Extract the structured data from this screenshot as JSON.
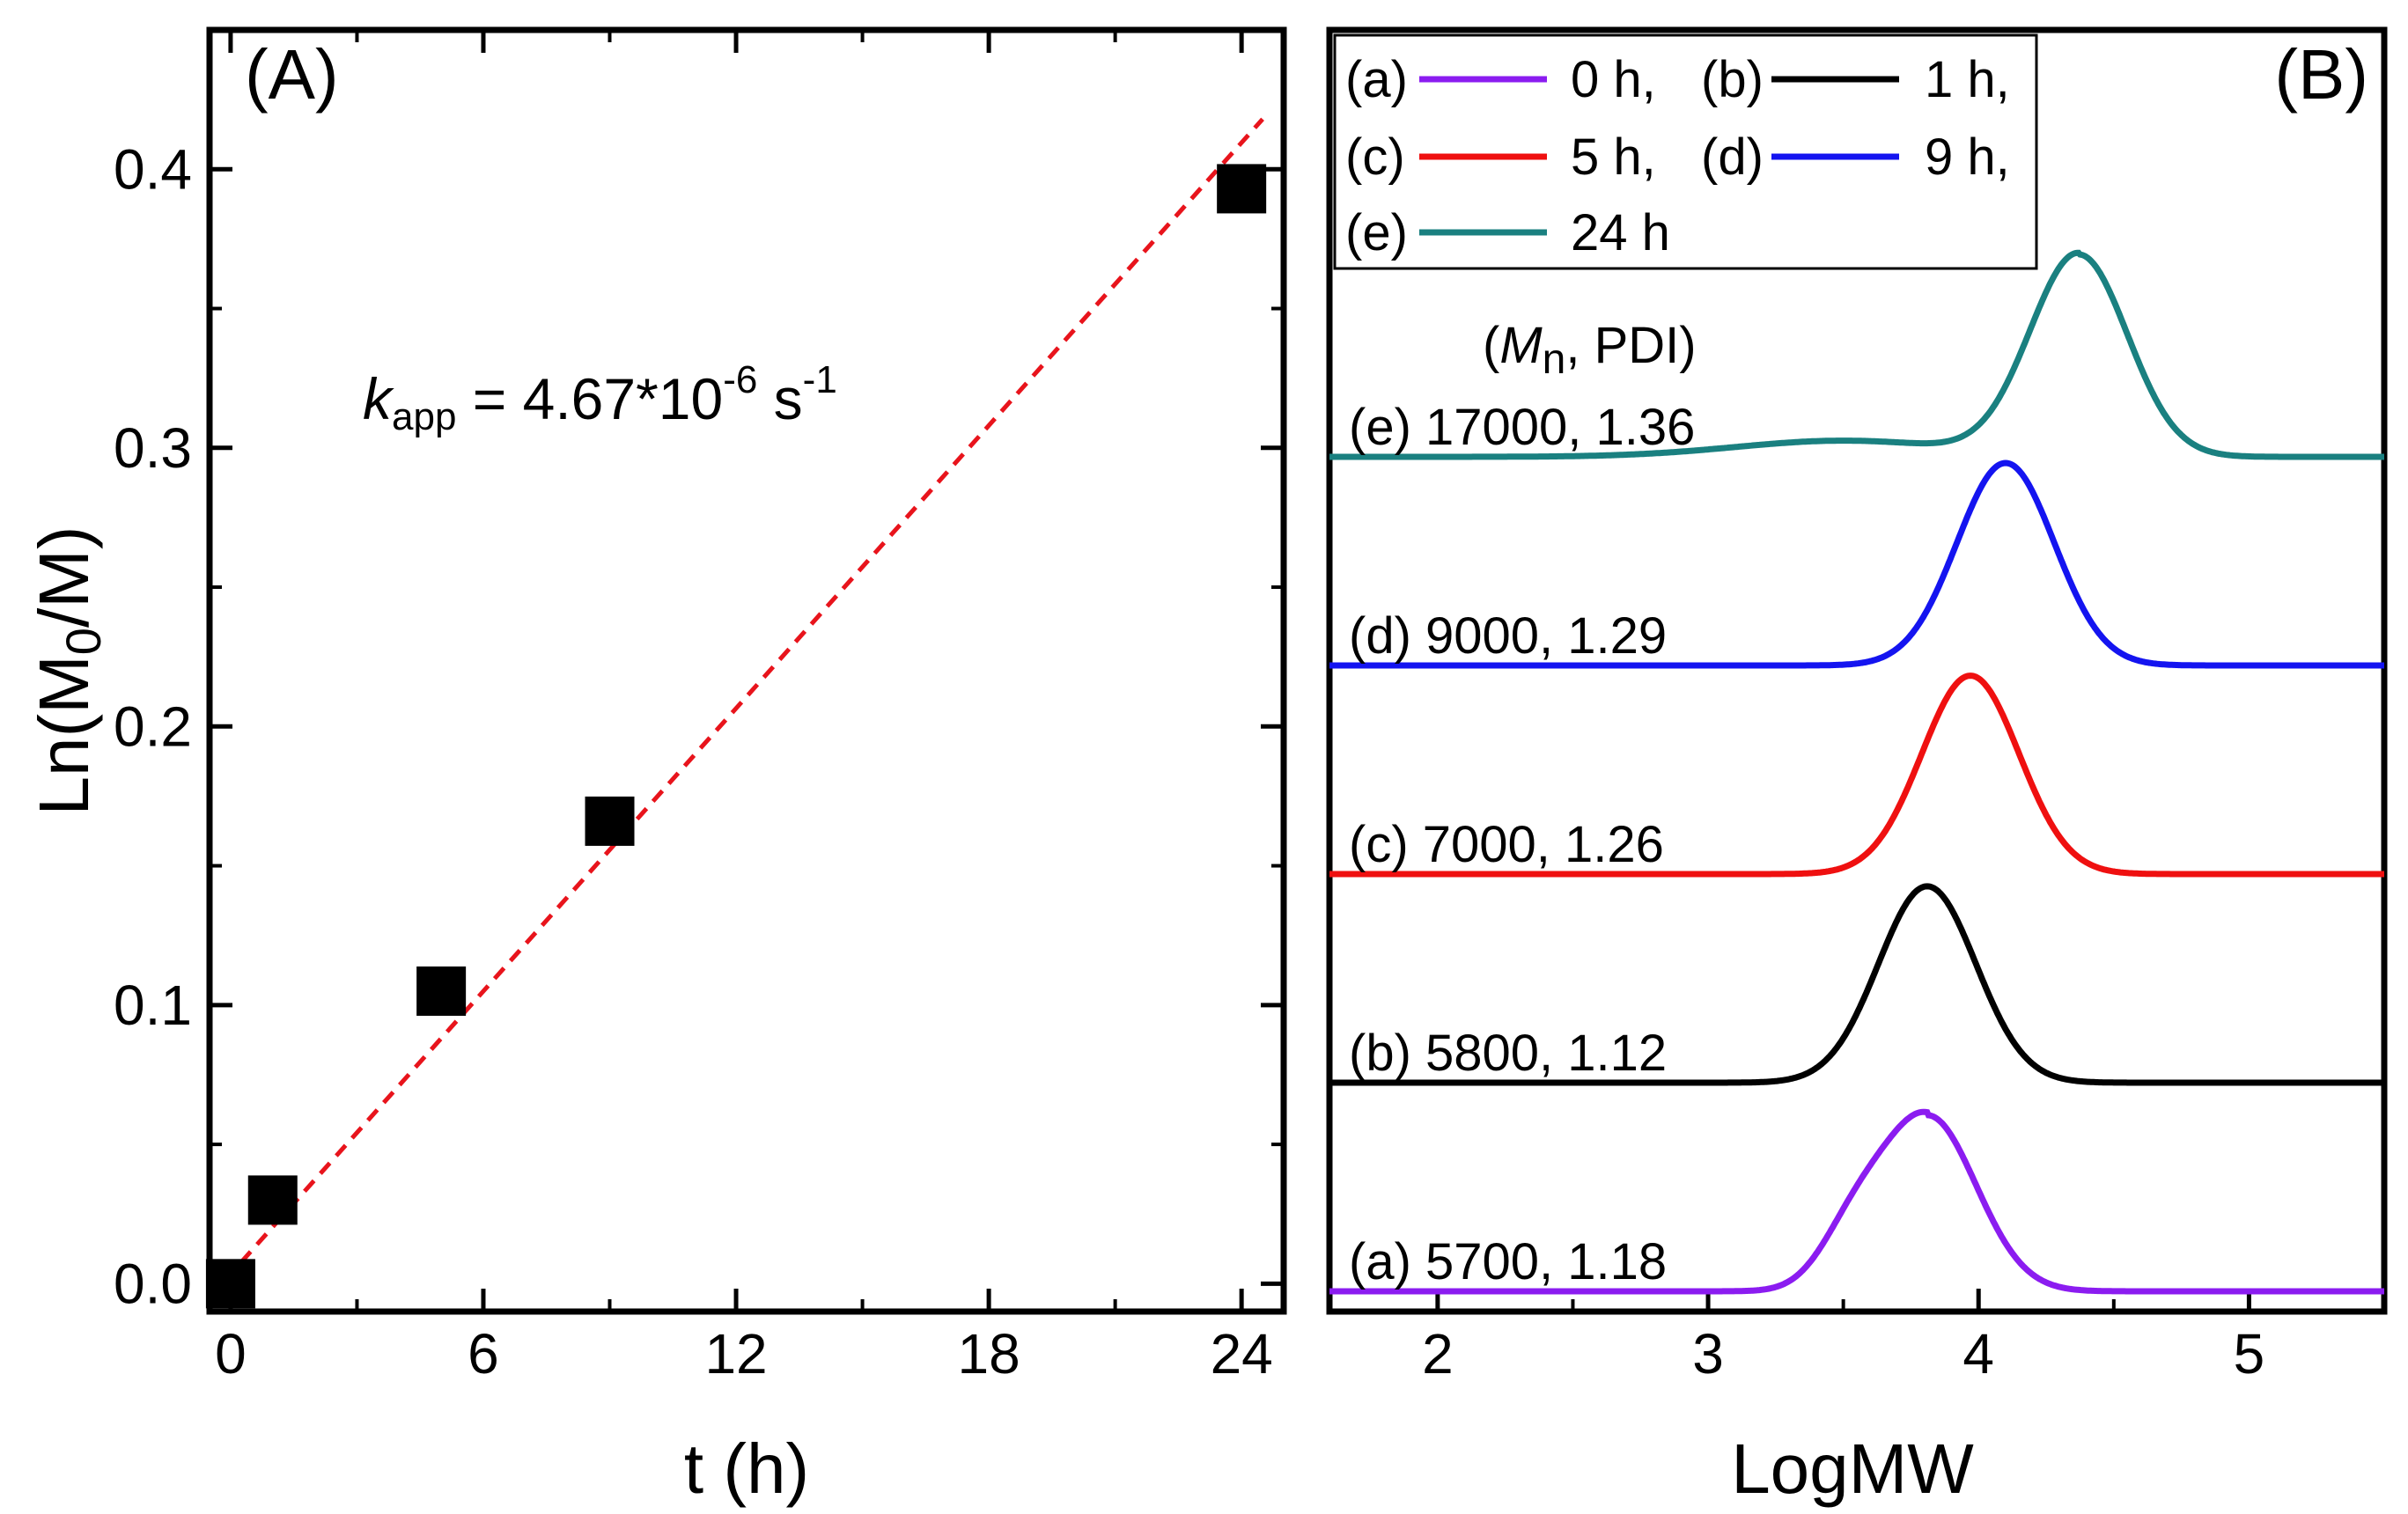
{
  "chart_data": [
    {
      "panel": "(A)",
      "type": "scatter",
      "xlabel": "t (h)",
      "ylabel": "Ln(M0/M)",
      "ylabel_parts": [
        "Ln(M",
        "0",
        "/M)"
      ],
      "xlim": [
        -0.5,
        25
      ],
      "ylim": [
        -0.01,
        0.45
      ],
      "x_ticks": [
        0,
        6,
        12,
        18,
        24
      ],
      "x_tick_labels": [
        "0",
        "6",
        "12",
        "18",
        "24"
      ],
      "y_ticks": [
        0.0,
        0.1,
        0.2,
        0.3,
        0.4
      ],
      "y_tick_labels": [
        "0.0",
        "0.1",
        "0.2",
        "0.3",
        "0.4"
      ],
      "points": {
        "x": [
          0,
          1,
          5,
          9,
          24
        ],
        "y": [
          0.0,
          0.03,
          0.105,
          0.166,
          0.393
        ],
        "color": "#000000"
      },
      "fit_line": {
        "x": [
          -0.5,
          24.5
        ],
        "y": [
          -0.005,
          0.418
        ],
        "color": "#e8141c",
        "style": "dashed"
      },
      "annotation": {
        "k": "k",
        "sub": "app",
        "value": " = 4.67*10",
        "exp": "-6",
        "unit": " s",
        "unit_exp": "-1"
      }
    },
    {
      "panel": "(B)",
      "type": "line",
      "xlabel": "LogMW",
      "xlim": [
        1.6,
        5.5
      ],
      "x_ticks": [
        2,
        3,
        4,
        5
      ],
      "x_tick_labels": [
        "2",
        "3",
        "4",
        "5"
      ],
      "series": [
        {
          "id": "a",
          "name": "0 h",
          "color": "#8b1cf0",
          "baseline": 0.0,
          "peak_x": 3.81,
          "peak_height": 0.87,
          "mn": "5700",
          "pdi": "1.18",
          "label": "(a) 5700, 1.18"
        },
        {
          "id": "b",
          "name": "1 h",
          "color": "#000000",
          "baseline": 1.0,
          "peak_x": 3.81,
          "peak_height": 0.97,
          "mn": "5800",
          "pdi": "1.12",
          "label": "(b) 5800, 1.12"
        },
        {
          "id": "c",
          "name": "5 h",
          "color": "#ef1010",
          "baseline": 2.0,
          "peak_x": 3.97,
          "peak_height": 0.98,
          "mn": "7000",
          "pdi": "1.26",
          "label": "(c) 7000, 1.26"
        },
        {
          "id": "d",
          "name": "9 h",
          "color": "#1414f0",
          "baseline": 3.0,
          "peak_x": 4.1,
          "peak_height": 1.0,
          "mn": "9000",
          "pdi": "1.29",
          "label": "(d) 9000, 1.29"
        },
        {
          "id": "e",
          "name": "24 h",
          "color": "#1a8080",
          "baseline": 4.0,
          "peak_x": 4.37,
          "peak_height": 1.0,
          "mn": "17000",
          "pdi": "1.36",
          "label": "(e) 17000, 1.36"
        }
      ],
      "legend": {
        "rows": [
          [
            {
              "key": "(a)",
              "text": "0 h,"
            },
            {
              "key": "(b)",
              "text": "1 h,"
            }
          ],
          [
            {
              "key": "(c)",
              "text": "5 h,"
            },
            {
              "key": "(d)",
              "text": "9 h,"
            }
          ],
          [
            {
              "key": "(e)",
              "text": "24 h"
            }
          ]
        ]
      },
      "header_annotation": {
        "open": "(",
        "mn_m": "M",
        "mn_n": "n",
        "rest": ", PDI)"
      }
    }
  ]
}
